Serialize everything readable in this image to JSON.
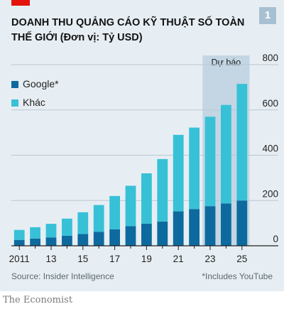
{
  "header": {
    "title": "DOANH THU QUẢNG CÁO KỸ THUẬT SỐ TOÀN THẾ GIỚI (Đơn vị: Tỷ USD)",
    "badge": "1"
  },
  "footer": {
    "source": "Source: Insider Intelligence",
    "note": "*Includes YouTube",
    "brand": "The Economist"
  },
  "colors": {
    "google": "#0d6a9e",
    "other": "#37c1d7",
    "forecast_band": "#c4d6e4",
    "background": "#e7eef3"
  },
  "chart_data": {
    "type": "bar",
    "stacked": true,
    "title": "DOANH THU QUẢNG CÁO KỸ THUẬT SỐ TOÀN THẾ GIỚI (Đơn vị: Tỷ USD)",
    "x": [
      2011,
      2012,
      2013,
      2014,
      2015,
      2016,
      2017,
      2018,
      2019,
      2020,
      2021,
      2022,
      2023,
      2024,
      2025
    ],
    "x_tick_labels": [
      "2011",
      "13",
      "15",
      "17",
      "19",
      "21",
      "23",
      "25"
    ],
    "x_tick_years": [
      2011,
      2013,
      2015,
      2017,
      2019,
      2021,
      2023,
      2025
    ],
    "series": [
      {
        "name": "Google*",
        "color": "#0d6a9e",
        "values": [
          26,
          32,
          37,
          44,
          52,
          62,
          73,
          87,
          98,
          107,
          152,
          162,
          175,
          187,
          200
        ]
      },
      {
        "name": "Khác",
        "color": "#37c1d7",
        "values": [
          44,
          50,
          60,
          76,
          96,
          118,
          147,
          178,
          222,
          276,
          338,
          360,
          395,
          435,
          515
        ]
      }
    ],
    "ylim": [
      0,
      800
    ],
    "yticks": [
      0,
      200,
      400,
      600,
      800
    ],
    "y_axis_side": "right",
    "grid": true,
    "legend": "top-left",
    "forecast": {
      "label": "Dự báo",
      "from": 2023,
      "to": 2025
    }
  }
}
